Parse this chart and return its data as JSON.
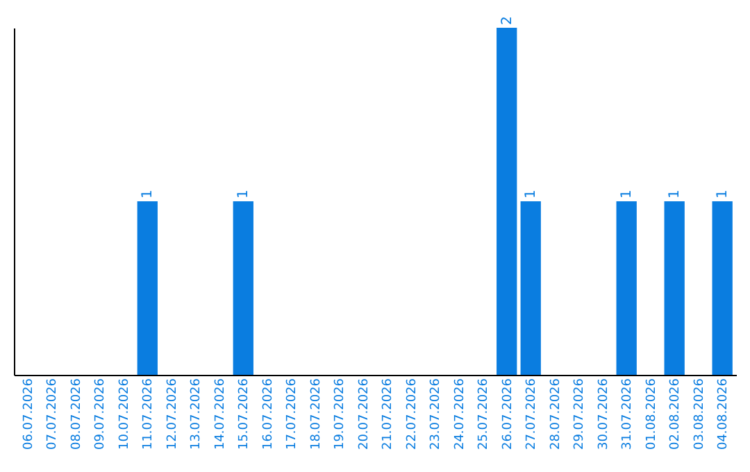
{
  "chart_data": {
    "type": "bar",
    "categories": [
      "06.07.2026",
      "07.07.2026",
      "08.07.2026",
      "09.07.2026",
      "10.07.2026",
      "11.07.2026",
      "12.07.2026",
      "13.07.2026",
      "14.07.2026",
      "15.07.2026",
      "16.07.2026",
      "17.07.2026",
      "18.07.2026",
      "19.07.2026",
      "20.07.2026",
      "21.07.2026",
      "22.07.2026",
      "23.07.2026",
      "24.07.2026",
      "25.07.2026",
      "26.07.2026",
      "27.07.2026",
      "28.07.2026",
      "29.07.2026",
      "30.07.2026",
      "31.07.2026",
      "01.08.2026",
      "02.08.2026",
      "03.08.2026",
      "04.08.2026"
    ],
    "values": [
      0,
      0,
      0,
      0,
      0,
      1,
      0,
      0,
      0,
      1,
      0,
      0,
      0,
      0,
      0,
      0,
      0,
      0,
      0,
      0,
      2,
      1,
      0,
      0,
      0,
      1,
      0,
      1,
      0,
      1
    ],
    "value_labels": [
      null,
      null,
      null,
      null,
      null,
      "1",
      null,
      null,
      null,
      "1",
      null,
      null,
      null,
      null,
      null,
      null,
      null,
      null,
      null,
      null,
      "2",
      "1",
      null,
      null,
      null,
      "1",
      null,
      "1",
      null,
      "1"
    ],
    "color": "#0a7de0",
    "tick_labels": "x"
  }
}
